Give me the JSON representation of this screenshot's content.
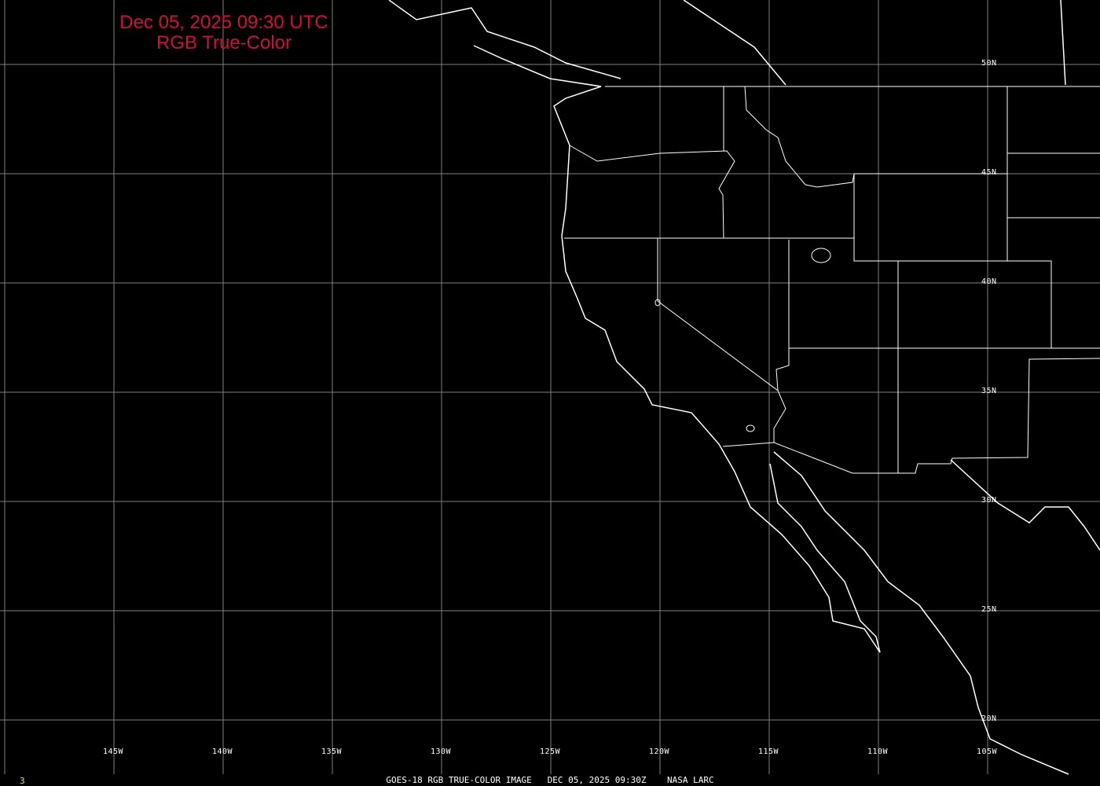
{
  "title": {
    "line1": "Dec 05, 2025 09:30 UTC",
    "line2": "RGB True-Color"
  },
  "longitude_labels": [
    "145W",
    "140W",
    "135W",
    "130W",
    "125W",
    "120W",
    "115W",
    "110W",
    "105W"
  ],
  "latitude_labels": [
    "50N",
    "45N",
    "40N",
    "35N",
    "30N",
    "25N",
    "20N"
  ],
  "caption": "GOES-18 RGB TRUE-COLOR IMAGE   DEC 05, 2025 09:30Z    NASA LARC",
  "frame_number": "3",
  "colors": {
    "title": "#d0103a",
    "grid": "#808080",
    "coastline": "#ffffff",
    "background": "#000000",
    "frame_number": "#e6e070"
  }
}
